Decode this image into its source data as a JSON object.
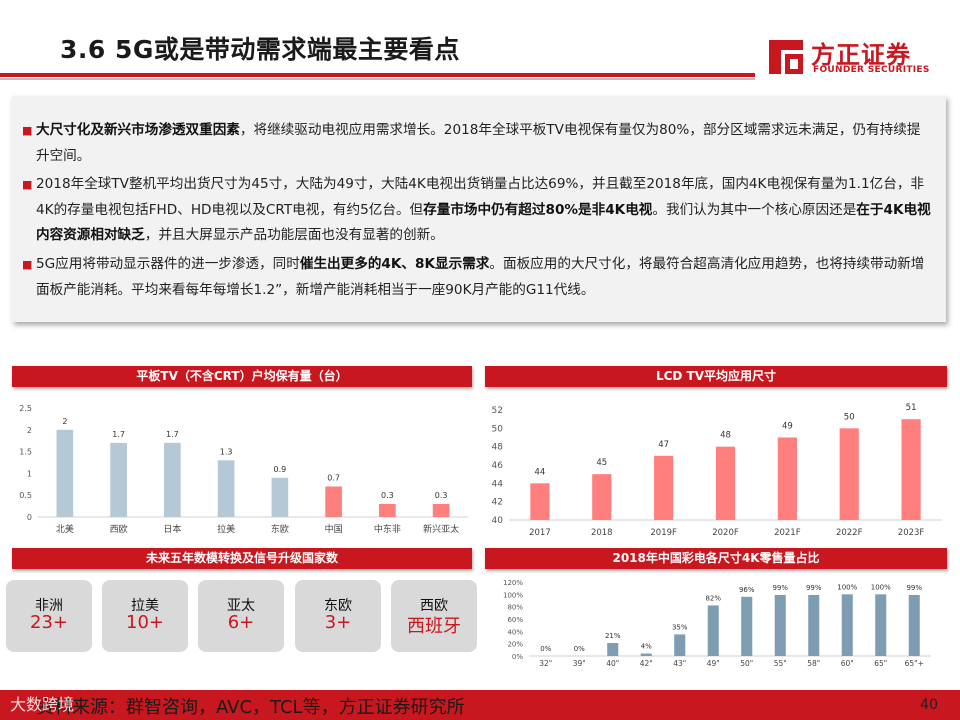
{
  "header": {
    "title": "3.6 5G或是带动需求端最主要看点",
    "logo_cn": "方正证券",
    "logo_en": "FOUNDER SECURITIES"
  },
  "bullets": [
    {
      "segments": [
        {
          "text": "大尺寸化及新兴市场渗透双重因素",
          "bold": true
        },
        {
          "text": "，将继续驱动电视应用需求增长。2018年全球平板TV电视保有量仅为80%，部分区域需求远未满足，仍有持续提升空间。",
          "bold": false
        }
      ]
    },
    {
      "segments": [
        {
          "text": "2018年全球TV整机平均出货尺寸为45寸，大陆为49寸，大陆4K电视出货销量占比达69%，并且截至2018年底，国内4K电视保有量为1.1亿台，非4K的存量电视包括FHD、HD电视以及CRT电视，有约5亿台。但",
          "bold": false
        },
        {
          "text": "存量市场中仍有超过80%是非4K电视",
          "bold": true
        },
        {
          "text": "。我们认为其中一个核心原因还是",
          "bold": false
        },
        {
          "text": "在于4K电视内容资源相对缺乏",
          "bold": true
        },
        {
          "text": "，并且大屏显示产品功能层面也没有显著的创新。",
          "bold": false
        }
      ]
    },
    {
      "segments": [
        {
          "text": "5G应用将带动显示器件的进一步渗透，同时",
          "bold": false
        },
        {
          "text": "催生出更多的4K、8K显示需求",
          "bold": true
        },
        {
          "text": "。面板应用的大尺寸化，将最符合超高清化应用趋势，也将持续带动新增面板产能消耗。平均来看每年每增长1.2”，新增产能消耗相当于一座90K月产能的G11代线。",
          "bold": false
        }
      ]
    }
  ],
  "sections": {
    "chart1_title": "平板TV（不含CRT）户均保有量（台）",
    "chart2_title": "LCD TV平均应用尺寸",
    "regions_title": "未来五年数模转换及信号升级国家数",
    "chart3_title": "2018年中国彩电各尺寸4K零售量占比"
  },
  "chart_data": [
    {
      "type": "bar",
      "title": "平板TV（不含CRT）户均保有量（台）",
      "categories": [
        "北美",
        "西欧",
        "日本",
        "拉美",
        "东欧",
        "中国",
        "中东非",
        "新兴亚太"
      ],
      "values": [
        2,
        1.7,
        1.7,
        1.3,
        0.9,
        0.7,
        0.3,
        0.3
      ],
      "value_labels": [
        "2",
        "1.7",
        "1.7",
        "1.3",
        "0.9",
        "0.7",
        "0.3",
        "0.3"
      ],
      "bar_colors": [
        "#b4c8d6",
        "#b4c8d6",
        "#b4c8d6",
        "#b4c8d6",
        "#b4c8d6",
        "#ff7f7f",
        "#ff7f7f",
        "#ff7f7f"
      ],
      "ylim": [
        0,
        2.5
      ],
      "yticks": [
        "0",
        "0.5",
        "1",
        "1.5",
        "2",
        "2.5"
      ],
      "grid": false
    },
    {
      "type": "bar",
      "title": "LCD TV平均应用尺寸",
      "categories": [
        "2017",
        "2018",
        "2019F",
        "2020F",
        "2021F",
        "2022F",
        "2023F"
      ],
      "values": [
        44,
        45,
        47,
        48,
        49,
        50,
        51
      ],
      "value_labels": [
        "44",
        "45",
        "47",
        "48",
        "49",
        "50",
        "51"
      ],
      "bar_color": "#ff7f7f",
      "ylim": [
        40,
        52
      ],
      "yticks": [
        "40",
        "42",
        "44",
        "46",
        "48",
        "50",
        "52"
      ],
      "grid": false
    },
    {
      "type": "bar",
      "title": "2018年中国彩电各尺寸4K零售量占比",
      "categories": [
        "32\"",
        "39\"",
        "40\"",
        "42\"",
        "43\"",
        "49\"",
        "50\"",
        "55\"",
        "58\"",
        "60\"",
        "65\"",
        "65\"+"
      ],
      "values": [
        0,
        0,
        21,
        4,
        35,
        82,
        96,
        99,
        99,
        100,
        100,
        99
      ],
      "value_labels": [
        "0%",
        "0%",
        "21%",
        "4%",
        "35%",
        "82%",
        "96%",
        "99%",
        "99%",
        "100%",
        "100%",
        "99%"
      ],
      "bar_color": "#7e9db3",
      "ylim": [
        0,
        120
      ],
      "yticks": [
        "0%",
        "20%",
        "40%",
        "60%",
        "80%",
        "100%",
        "120%"
      ],
      "grid": false
    }
  ],
  "regions": [
    {
      "name": "非洲",
      "value": "23+"
    },
    {
      "name": "拉美",
      "value": "10+"
    },
    {
      "name": "亚太",
      "value": "6+"
    },
    {
      "name": "东欧",
      "value": "3+"
    },
    {
      "name": "西欧",
      "value": "西班牙"
    }
  ],
  "footer": {
    "source": "资料来源：群智咨询，AVC，TCL等，方正证券研究所",
    "watermark": "大数跨境",
    "page": "40"
  },
  "colors": {
    "brand_red": "#c8171e",
    "bar_blue": "#b4c8d6",
    "bar_pink": "#ff7f7f",
    "bar_steel": "#7e9db3"
  }
}
